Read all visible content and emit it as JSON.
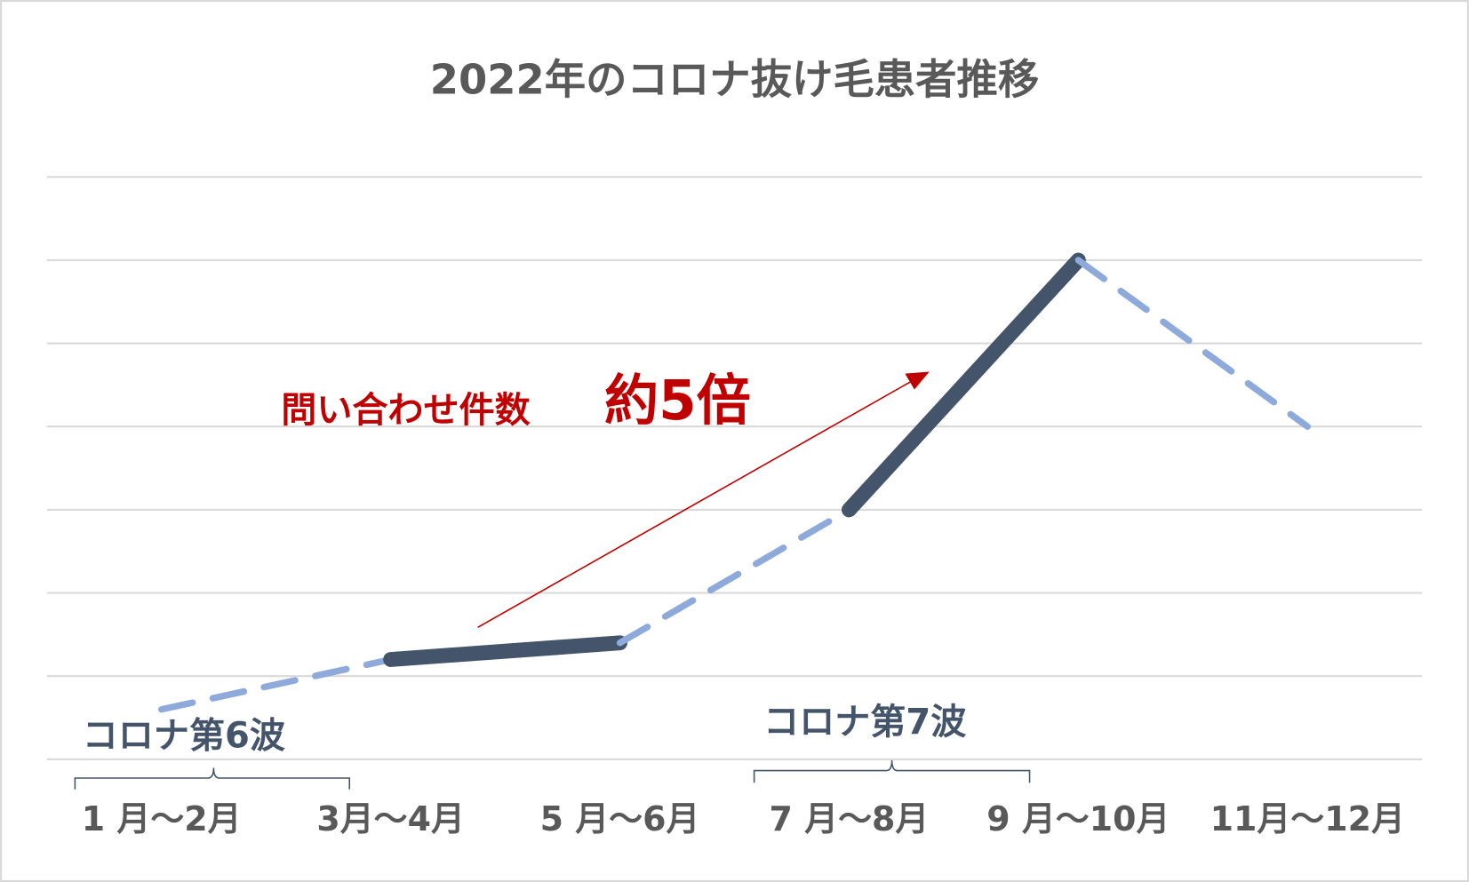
{
  "chart_data": {
    "type": "line",
    "title": "2022年のコロナ抜け毛患者推移",
    "categories": [
      "1 月～2月",
      "3月～4月",
      "5 月～6月",
      "7 月～8月",
      "9 月～10月",
      "11月～12月"
    ],
    "series": [
      {
        "values": [
          0.6,
          1.2,
          1.4,
          3.0,
          6.0,
          4.0
        ],
        "color": "#8eaadb",
        "highlight_color": "#44546a",
        "segment_styles": [
          "dashed",
          "solid",
          "dashed",
          "solid",
          "dashed"
        ]
      }
    ],
    "ylim": [
      0,
      7
    ],
    "yticks": [
      0,
      1,
      2,
      3,
      4,
      5,
      6,
      7
    ],
    "grid": true,
    "annotations": [
      {
        "text": "問い合わせ件数",
        "color": "#c00000"
      },
      {
        "text": "約5倍",
        "color": "#c00000"
      },
      {
        "text": "コロナ第6波",
        "color": "#44546a"
      },
      {
        "text": "コロナ第7波",
        "color": "#44546a"
      }
    ]
  }
}
